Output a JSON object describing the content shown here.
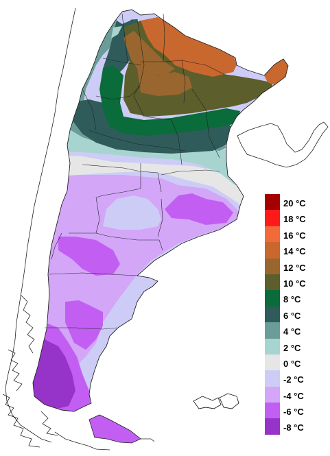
{
  "legend": {
    "items": [
      {
        "label": "20 °C",
        "color": "#a50000"
      },
      {
        "label": "18 °C",
        "color": "#ff1a1a"
      },
      {
        "label": "16 °C",
        "color": "#f26a3a"
      },
      {
        "label": "14 °C",
        "color": "#c8672e"
      },
      {
        "label": "12 °C",
        "color": "#9a6630"
      },
      {
        "label": "10 °C",
        "color": "#5c5e2c"
      },
      {
        "label": "8 °C",
        "color": "#0a6b3b"
      },
      {
        "label": "6 °C",
        "color": "#2f5c5a"
      },
      {
        "label": "4 °C",
        "color": "#6b9d98"
      },
      {
        "label": "2 °C",
        "color": "#a8d4d0"
      },
      {
        "label": "0 °C",
        "color": "#e6e6e6"
      },
      {
        "label": "-2 °C",
        "color": "#cdccf6"
      },
      {
        "label": "-4 °C",
        "color": "#d3a6f7"
      },
      {
        "label": "-6 °C",
        "color": "#c25ff2"
      },
      {
        "label": "-8 °C",
        "color": "#9633c9"
      }
    ]
  }
}
